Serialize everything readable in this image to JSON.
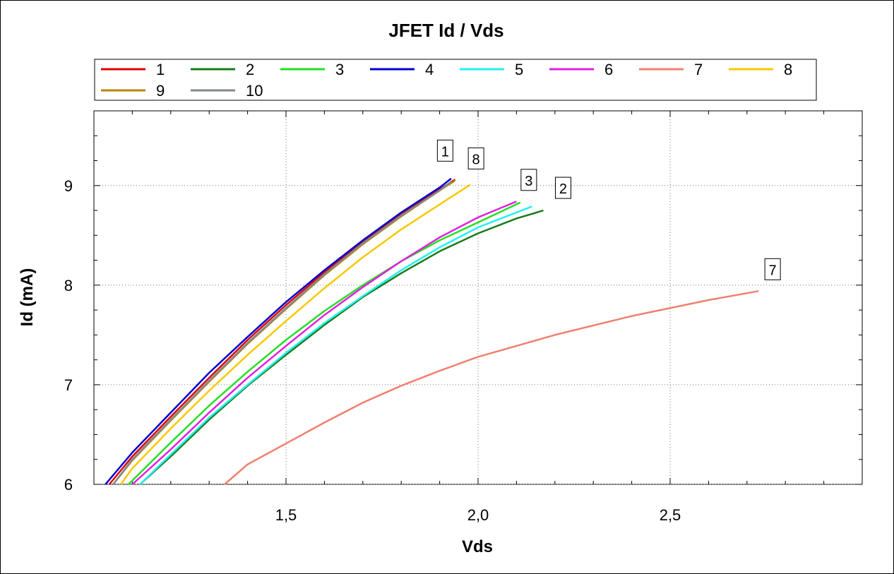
{
  "chart_data": {
    "type": "line",
    "title": "JFET Id / Vds",
    "xlabel": "Vds",
    "ylabel": "Id (mA)",
    "xlim": [
      1.0,
      3.0
    ],
    "ylim": [
      6.0,
      9.75
    ],
    "x_ticks": [
      {
        "value": 1.5,
        "label": "1,5"
      },
      {
        "value": 2.0,
        "label": "2,0"
      },
      {
        "value": 2.5,
        "label": "2,5"
      }
    ],
    "y_ticks": [
      {
        "value": 6,
        "label": "6"
      },
      {
        "value": 7,
        "label": "7"
      },
      {
        "value": 8,
        "label": "8"
      },
      {
        "value": 9,
        "label": "9"
      }
    ],
    "grid": true,
    "legend_position": "top",
    "series": [
      {
        "name": "1",
        "color": "#e00000",
        "x": [
          1.04,
          1.1,
          1.2,
          1.3,
          1.4,
          1.5,
          1.6,
          1.7,
          1.8,
          1.9,
          1.94
        ],
        "y": [
          6.0,
          6.28,
          6.68,
          7.07,
          7.45,
          7.8,
          8.13,
          8.44,
          8.71,
          8.96,
          9.06
        ]
      },
      {
        "name": "2",
        "color": "#1a7a1a",
        "x": [
          1.12,
          1.2,
          1.3,
          1.4,
          1.5,
          1.6,
          1.7,
          1.8,
          1.9,
          2.0,
          2.1,
          2.17
        ],
        "y": [
          6.0,
          6.28,
          6.65,
          6.99,
          7.3,
          7.6,
          7.88,
          8.12,
          8.34,
          8.52,
          8.67,
          8.75
        ]
      },
      {
        "name": "3",
        "color": "#22e022",
        "x": [
          1.09,
          1.2,
          1.3,
          1.4,
          1.5,
          1.6,
          1.7,
          1.8,
          1.9,
          2.0,
          2.11
        ],
        "y": [
          6.0,
          6.42,
          6.79,
          7.13,
          7.45,
          7.74,
          8.0,
          8.24,
          8.45,
          8.63,
          8.83
        ]
      },
      {
        "name": "4",
        "color": "#0000d0",
        "x": [
          1.03,
          1.1,
          1.2,
          1.3,
          1.4,
          1.5,
          1.6,
          1.7,
          1.8,
          1.9,
          1.93
        ],
        "y": [
          6.0,
          6.32,
          6.72,
          7.12,
          7.48,
          7.83,
          8.15,
          8.45,
          8.73,
          8.98,
          9.07
        ]
      },
      {
        "name": "5",
        "color": "#22f0f0",
        "x": [
          1.12,
          1.2,
          1.3,
          1.4,
          1.5,
          1.6,
          1.7,
          1.8,
          1.9,
          2.0,
          2.14
        ],
        "y": [
          6.0,
          6.3,
          6.67,
          7.0,
          7.32,
          7.62,
          7.89,
          8.15,
          8.38,
          8.58,
          8.79
        ]
      },
      {
        "name": "6",
        "color": "#e020e0",
        "x": [
          1.1,
          1.2,
          1.3,
          1.4,
          1.5,
          1.6,
          1.7,
          1.8,
          1.9,
          2.0,
          2.1
        ],
        "y": [
          6.0,
          6.35,
          6.72,
          7.07,
          7.39,
          7.7,
          7.98,
          8.24,
          8.48,
          8.68,
          8.84
        ]
      },
      {
        "name": "7",
        "color": "#f08070",
        "x": [
          1.34,
          1.4,
          1.5,
          1.6,
          1.7,
          1.8,
          1.9,
          2.0,
          2.2,
          2.4,
          2.6,
          2.73
        ],
        "y": [
          6.0,
          6.2,
          6.41,
          6.62,
          6.82,
          6.99,
          7.14,
          7.28,
          7.5,
          7.69,
          7.85,
          7.94
        ]
      },
      {
        "name": "8",
        "color": "#f8c800",
        "x": [
          1.07,
          1.1,
          1.2,
          1.3,
          1.4,
          1.5,
          1.6,
          1.7,
          1.8,
          1.9,
          1.98
        ],
        "y": [
          6.0,
          6.16,
          6.56,
          6.94,
          7.3,
          7.64,
          7.97,
          8.28,
          8.56,
          8.81,
          9.01
        ]
      },
      {
        "name": "9",
        "color": "#b8860b",
        "x": [
          1.05,
          1.1,
          1.2,
          1.3,
          1.4,
          1.5,
          1.6,
          1.7,
          1.8,
          1.9,
          1.94
        ],
        "y": [
          6.0,
          6.24,
          6.64,
          7.03,
          7.41,
          7.76,
          8.1,
          8.41,
          8.69,
          8.95,
          9.05
        ]
      },
      {
        "name": "10",
        "color": "#808890",
        "x": [
          1.05,
          1.1,
          1.2,
          1.3,
          1.4,
          1.5,
          1.6,
          1.7,
          1.8,
          1.9,
          1.93
        ],
        "y": [
          6.0,
          6.25,
          6.65,
          7.04,
          7.42,
          7.77,
          8.11,
          8.42,
          8.7,
          8.95,
          9.04
        ]
      }
    ],
    "end_labels": [
      "1",
      "8",
      "3",
      "2",
      "7"
    ]
  }
}
